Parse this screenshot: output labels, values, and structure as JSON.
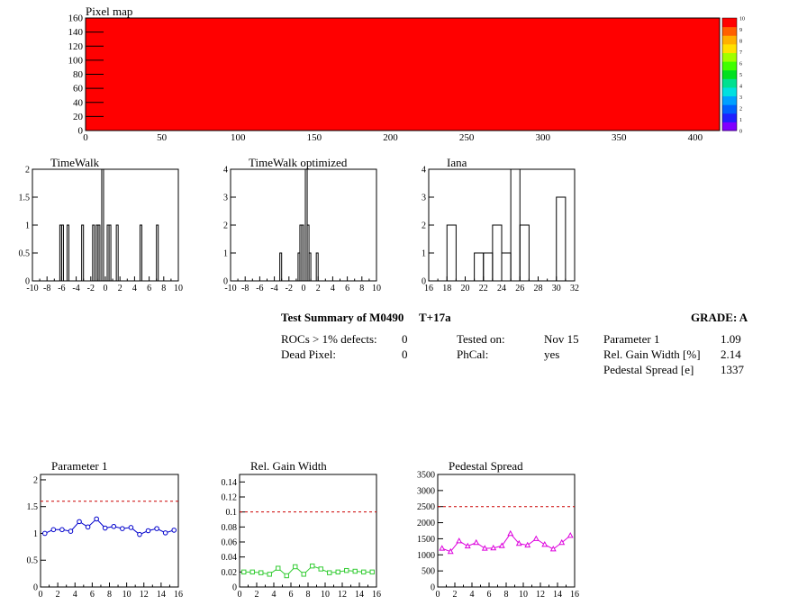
{
  "pixel_map": {
    "title": "Pixel map",
    "fill_color": "#ff0000",
    "xlim": [
      0,
      416
    ],
    "ylim": [
      0,
      160
    ],
    "x_ticks": [
      0,
      50,
      100,
      150,
      200,
      250,
      300,
      350,
      400
    ],
    "y_ticks": [
      0,
      20,
      40,
      60,
      80,
      100,
      120,
      140,
      160
    ],
    "colorbar": {
      "labels": [
        "0",
        "1",
        "2",
        "3",
        "4",
        "5",
        "6",
        "7",
        "8",
        "9",
        "10"
      ],
      "colors": [
        "#8000ff",
        "#2020ff",
        "#0060ff",
        "#00a0ff",
        "#00e0e0",
        "#00e090",
        "#00e020",
        "#40ff00",
        "#a0ff00",
        "#ffe000",
        "#ffb000",
        "#ff6000",
        "#ff0000"
      ]
    }
  },
  "summary": {
    "title": "Test Summary of M0490",
    "temperature": "T+17a",
    "grade": "GRADE:  A",
    "left": [
      {
        "label": "ROCs > 1% defects:",
        "value": "0"
      },
      {
        "label": "Dead Pixel:",
        "value": "0"
      }
    ],
    "middle": [
      {
        "label": "Tested on:",
        "value": "Nov 15"
      },
      {
        "label": "PhCal:",
        "value": "yes"
      }
    ],
    "right": [
      {
        "label": "Parameter 1",
        "value": "1.09"
      },
      {
        "label": "Rel. Gain Width [%]",
        "value": "2.14"
      },
      {
        "label": "Pedestal Spread [e]",
        "value": "1337"
      }
    ]
  },
  "chart_data": [
    {
      "type": "bar",
      "title": "TimeWalk",
      "xlim": [
        -10,
        10
      ],
      "ylim": [
        0,
        2
      ],
      "x_ticks": [
        -10,
        -8,
        -6,
        -4,
        -2,
        0,
        2,
        4,
        6,
        8,
        10
      ],
      "y_ticks": [
        0,
        0.5,
        1,
        1.5,
        2
      ],
      "y_tick_labels": [
        "0",
        "0.5",
        "1",
        "1.5",
        "2"
      ],
      "bin_width": 0.25,
      "bins": [
        {
          "x": -6.25,
          "y": 1
        },
        {
          "x": -6.0,
          "y": 1
        },
        {
          "x": -5.25,
          "y": 1
        },
        {
          "x": -3.25,
          "y": 1
        },
        {
          "x": -1.75,
          "y": 1
        },
        {
          "x": -1.25,
          "y": 1
        },
        {
          "x": -1.0,
          "y": 1
        },
        {
          "x": -0.5,
          "y": 2
        },
        {
          "x": 0.25,
          "y": 1
        },
        {
          "x": 0.5,
          "y": 1
        },
        {
          "x": 1.5,
          "y": 1
        },
        {
          "x": 4.75,
          "y": 1
        },
        {
          "x": 7.0,
          "y": 1
        }
      ]
    },
    {
      "type": "bar",
      "title": "TimeWalk optimized",
      "xlim": [
        -10,
        10
      ],
      "ylim": [
        0,
        4
      ],
      "x_ticks": [
        -10,
        -8,
        -6,
        -4,
        -2,
        0,
        2,
        4,
        6,
        8,
        10
      ],
      "y_ticks": [
        0,
        1,
        2,
        3,
        4
      ],
      "y_tick_labels": [
        "0",
        "1",
        "2",
        "3",
        "4"
      ],
      "bin_width": 0.25,
      "bins": [
        {
          "x": -3.25,
          "y": 1
        },
        {
          "x": -0.75,
          "y": 1
        },
        {
          "x": -0.5,
          "y": 2
        },
        {
          "x": -0.25,
          "y": 2
        },
        {
          "x": 0.25,
          "y": 4
        },
        {
          "x": 0.5,
          "y": 2
        },
        {
          "x": 0.75,
          "y": 1
        },
        {
          "x": 1.75,
          "y": 1
        }
      ]
    },
    {
      "type": "bar",
      "title": "Iana",
      "xlim": [
        16,
        32
      ],
      "ylim": [
        0,
        4
      ],
      "x_ticks": [
        16,
        18,
        20,
        22,
        24,
        26,
        28,
        30,
        32
      ],
      "y_ticks": [
        0,
        1,
        2,
        3,
        4
      ],
      "y_tick_labels": [
        "0",
        "1",
        "2",
        "3",
        "4"
      ],
      "bin_width": 1,
      "bins": [
        {
          "x": 18,
          "y": 2
        },
        {
          "x": 21,
          "y": 1
        },
        {
          "x": 22,
          "y": 1
        },
        {
          "x": 23,
          "y": 2
        },
        {
          "x": 24,
          "y": 1
        },
        {
          "x": 25,
          "y": 4
        },
        {
          "x": 26,
          "y": 2
        },
        {
          "x": 30,
          "y": 3
        }
      ]
    },
    {
      "type": "line",
      "title": "Parameter 1",
      "color": "#0000cc",
      "marker": "circle",
      "xlim": [
        0,
        16
      ],
      "ylim": [
        0,
        2.1
      ],
      "x_ticks": [
        0,
        2,
        4,
        6,
        8,
        10,
        12,
        14,
        16
      ],
      "y_ticks": [
        0,
        0.5,
        1,
        1.5,
        2
      ],
      "y_tick_labels": [
        "0",
        "0.5",
        "1",
        "1.5",
        "2"
      ],
      "reference_line": 1.6,
      "x": [
        0.5,
        1.5,
        2.5,
        3.5,
        4.5,
        5.5,
        6.5,
        7.5,
        8.5,
        9.5,
        10.5,
        11.5,
        12.5,
        13.5,
        14.5,
        15.5
      ],
      "y": [
        1.0,
        1.07,
        1.07,
        1.04,
        1.22,
        1.12,
        1.27,
        1.1,
        1.13,
        1.09,
        1.11,
        0.98,
        1.05,
        1.09,
        1.01,
        1.06
      ]
    },
    {
      "type": "line",
      "title": "Rel. Gain Width",
      "color": "#33cc33",
      "marker": "square",
      "xlim": [
        0,
        16
      ],
      "ylim": [
        0,
        0.15
      ],
      "x_ticks": [
        0,
        2,
        4,
        6,
        8,
        10,
        12,
        14,
        16
      ],
      "y_ticks": [
        0,
        0.02,
        0.04,
        0.06,
        0.08,
        0.1,
        0.12,
        0.14
      ],
      "y_tick_labels": [
        "0",
        "0.02",
        "0.04",
        "0.06",
        "0.08",
        "0.1",
        "0.12",
        "0.14"
      ],
      "reference_line": 0.1,
      "x": [
        0.5,
        1.5,
        2.5,
        3.5,
        4.5,
        5.5,
        6.5,
        7.5,
        8.5,
        9.5,
        10.5,
        11.5,
        12.5,
        13.5,
        14.5,
        15.5
      ],
      "y": [
        0.02,
        0.02,
        0.019,
        0.017,
        0.025,
        0.015,
        0.027,
        0.017,
        0.028,
        0.024,
        0.019,
        0.02,
        0.022,
        0.021,
        0.02,
        0.02
      ]
    },
    {
      "type": "line",
      "title": "Pedestal Spread",
      "color": "#dd00dd",
      "marker": "triangle",
      "xlim": [
        0,
        16
      ],
      "ylim": [
        0,
        3500
      ],
      "x_ticks": [
        0,
        2,
        4,
        6,
        8,
        10,
        12,
        14,
        16
      ],
      "y_ticks": [
        0,
        500,
        1000,
        1500,
        2000,
        2500,
        3000,
        3500
      ],
      "y_tick_labels": [
        "0",
        "500",
        "1000",
        "1500",
        "2000",
        "2500",
        "3000",
        "3500"
      ],
      "reference_line": 2500,
      "x": [
        0.5,
        1.5,
        2.5,
        3.5,
        4.5,
        5.5,
        6.5,
        7.5,
        8.5,
        9.5,
        10.5,
        11.5,
        12.5,
        13.5,
        14.5,
        15.5
      ],
      "y": [
        1200,
        1100,
        1430,
        1270,
        1380,
        1200,
        1210,
        1280,
        1660,
        1350,
        1300,
        1500,
        1320,
        1180,
        1380,
        1600
      ]
    }
  ]
}
